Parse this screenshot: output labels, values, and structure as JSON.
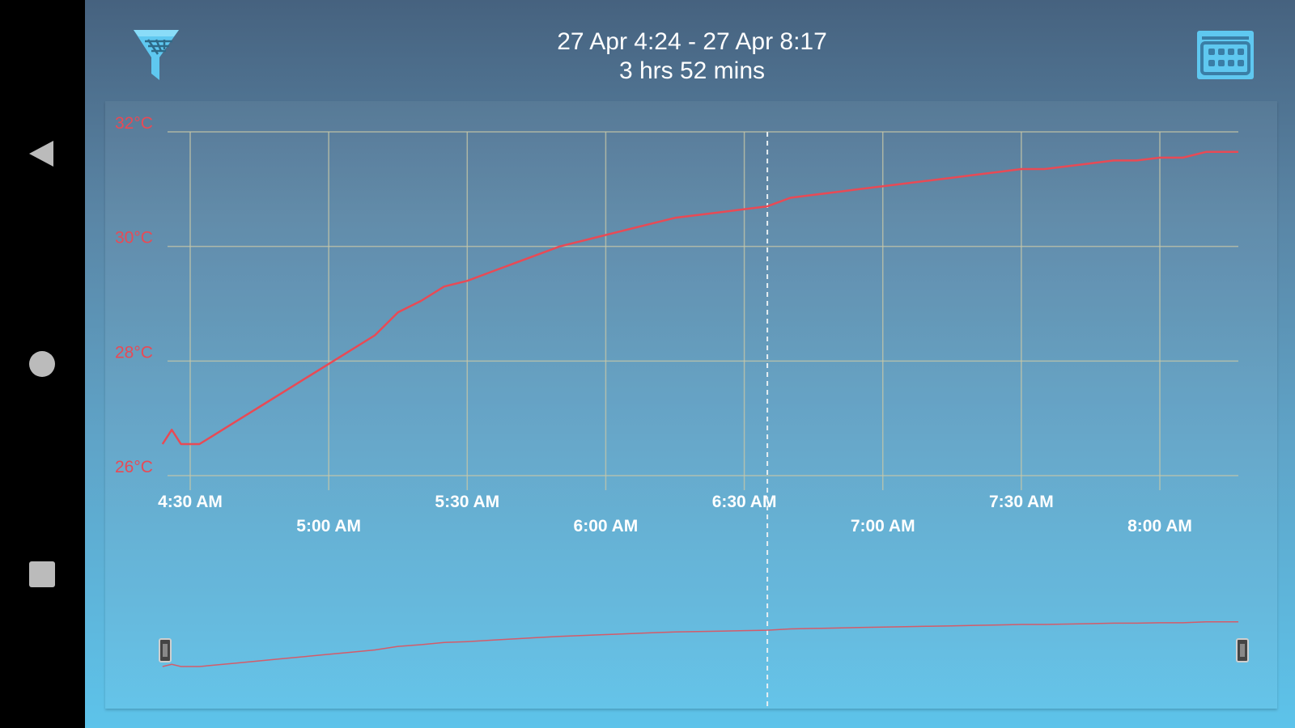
{
  "header": {
    "range": "27 Apr 4:24 - 27 Apr 8:17",
    "duration": "3 hrs 52 mins"
  },
  "icons": {
    "filter": "filter-funnel-icon",
    "menu": "device-keypad-icon",
    "back": "back-triangle-icon",
    "home": "home-circle-icon",
    "recents": "recents-square-icon"
  },
  "colors": {
    "series": "#e84a55",
    "grid": "#c8c8a8",
    "accent": "#5fc8f0"
  },
  "chart_data": {
    "type": "line",
    "x_unit": "time",
    "y_unit": "°C",
    "y_ticks": [
      {
        "value": 32,
        "label": "32°C"
      },
      {
        "value": 30,
        "label": "30°C"
      },
      {
        "value": 28,
        "label": "28°C"
      },
      {
        "value": 26,
        "label": "26°C"
      }
    ],
    "ylim": [
      26,
      32
    ],
    "xlim": [
      "04:24",
      "08:17"
    ],
    "x_ticks": [
      {
        "time": "04:30",
        "label": "4:30 AM"
      },
      {
        "time": "05:00",
        "label": "5:00 AM"
      },
      {
        "time": "05:30",
        "label": "5:30 AM"
      },
      {
        "time": "06:00",
        "label": "6:00 AM"
      },
      {
        "time": "06:30",
        "label": "6:30 AM"
      },
      {
        "time": "07:00",
        "label": "7:00 AM"
      },
      {
        "time": "07:30",
        "label": "7:30 AM"
      },
      {
        "time": "08:00",
        "label": "8:00 AM"
      }
    ],
    "cursor_time": "06:35",
    "grid": true,
    "series": [
      {
        "x": [
          "04:24",
          "04:26",
          "04:28",
          "04:32",
          "04:35",
          "04:40",
          "04:45",
          "04:50",
          "04:55",
          "05:00",
          "05:05",
          "05:10",
          "05:15",
          "05:20",
          "05:25",
          "05:30",
          "05:35",
          "05:40",
          "05:45",
          "05:50",
          "05:55",
          "06:00",
          "06:05",
          "06:10",
          "06:15",
          "06:20",
          "06:25",
          "06:30",
          "06:35",
          "06:40",
          "06:45",
          "06:50",
          "06:55",
          "07:00",
          "07:05",
          "07:10",
          "07:15",
          "07:20",
          "07:25",
          "07:30",
          "07:35",
          "07:40",
          "07:45",
          "07:50",
          "07:55",
          "08:00",
          "08:05",
          "08:10",
          "08:17"
        ],
        "y": [
          26.55,
          26.8,
          26.55,
          26.55,
          26.7,
          26.95,
          27.2,
          27.45,
          27.7,
          27.95,
          28.2,
          28.45,
          28.85,
          29.05,
          29.3,
          29.4,
          29.55,
          29.7,
          29.85,
          30.0,
          30.1,
          30.2,
          30.3,
          30.4,
          30.5,
          30.55,
          30.6,
          30.65,
          30.7,
          30.85,
          30.9,
          30.95,
          31.0,
          31.05,
          31.1,
          31.15,
          31.2,
          31.25,
          31.3,
          31.35,
          31.35,
          31.4,
          31.45,
          31.5,
          31.5,
          31.55,
          31.55,
          31.65,
          31.65
        ]
      }
    ]
  }
}
